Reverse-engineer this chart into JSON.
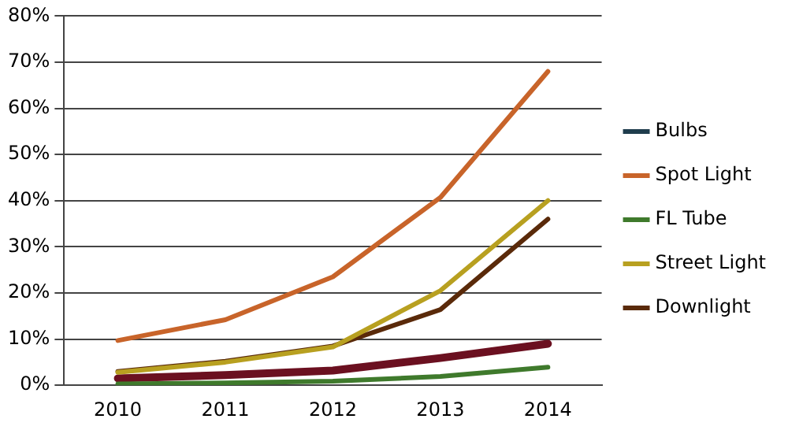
{
  "chart_data": {
    "type": "line",
    "categories": [
      "2010",
      "2011",
      "2012",
      "2013",
      "2014"
    ],
    "series": [
      {
        "name": "Bulbs",
        "color": "#1f3d4d",
        "values": [
          null,
          null,
          null,
          null,
          null
        ]
      },
      {
        "name": "Spot Light",
        "color": "#c8642a",
        "values": [
          9.7,
          14.2,
          23.5,
          40.7,
          68
        ]
      },
      {
        "name": "FL Tube",
        "color": "#3f7a2c",
        "values": [
          0.3,
          0.5,
          0.9,
          1.9,
          3.9
        ]
      },
      {
        "name": "Street Light",
        "color": "#b8a020",
        "values": [
          2.8,
          5,
          8.3,
          20.5,
          40
        ]
      },
      {
        "name": "Downlight",
        "color": "#5a2a0a",
        "values": [
          3,
          5.2,
          8.5,
          16.4,
          36
        ]
      },
      {
        "color": "#6b1020",
        "values": [
          1.5,
          2.2,
          3.2,
          5.9,
          9
        ]
      }
    ],
    "ylim": [
      0,
      80
    ],
    "yticks": [
      {
        "value": 0,
        "label": "0%"
      },
      {
        "value": 10,
        "label": "10%"
      },
      {
        "value": 20,
        "label": "20%"
      },
      {
        "value": 30,
        "label": "30%"
      },
      {
        "value": 40,
        "label": "40%"
      },
      {
        "value": 50,
        "label": "50%"
      },
      {
        "value": 60,
        "label": "60%"
      },
      {
        "value": 70,
        "label": "70%"
      },
      {
        "value": 80,
        "label": "80%"
      }
    ],
    "grid": "y",
    "legend": "right",
    "marker": "none",
    "line_style": "solid"
  }
}
